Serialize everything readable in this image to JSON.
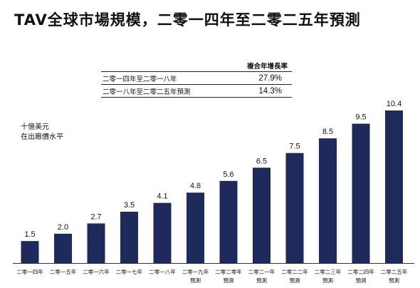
{
  "title": "TAV全球市場規模，二零一四年至二零二五年預測",
  "cagr_table": {
    "header": "複合年增長率",
    "rows": [
      {
        "period": "二零一四年至二零一八年",
        "value": "27.9%"
      },
      {
        "period": "二零一八年至二零二五年預測",
        "value": "14.3%"
      }
    ]
  },
  "ylabel_lines": [
    "十億美元",
    "在出廠價水平"
  ],
  "chart_data": {
    "type": "bar",
    "title": "TAV全球市場規模，二零一四年至二零二五年預測",
    "ylabel": "十億美元 在出廠價水平",
    "categories": [
      [
        "二零一四年"
      ],
      [
        "二零一五年"
      ],
      [
        "二零一六年"
      ],
      [
        "二零一七年"
      ],
      [
        "二零一八年"
      ],
      [
        "二零一九年",
        "預測"
      ],
      [
        "二零二零年",
        "預測"
      ],
      [
        "二零二一年",
        "預測"
      ],
      [
        "二零二二年",
        "預測"
      ],
      [
        "二零二三年",
        "預測"
      ],
      [
        "二零二四年",
        "預測"
      ],
      [
        "二零二五年",
        "預測"
      ]
    ],
    "values": [
      1.5,
      2.0,
      2.7,
      3.5,
      4.1,
      4.8,
      5.6,
      6.5,
      7.5,
      8.5,
      9.5,
      10.4
    ],
    "value_labels": [
      "1.5",
      "2.0",
      "2.7",
      "3.5",
      "4.1",
      "4.8",
      "5.6",
      "6.5",
      "7.5",
      "8.5",
      "9.5",
      "10.4"
    ],
    "ylim": [
      0,
      10.4
    ],
    "bar_color": "#1f2a5c",
    "grid": false,
    "legend": "none"
  }
}
